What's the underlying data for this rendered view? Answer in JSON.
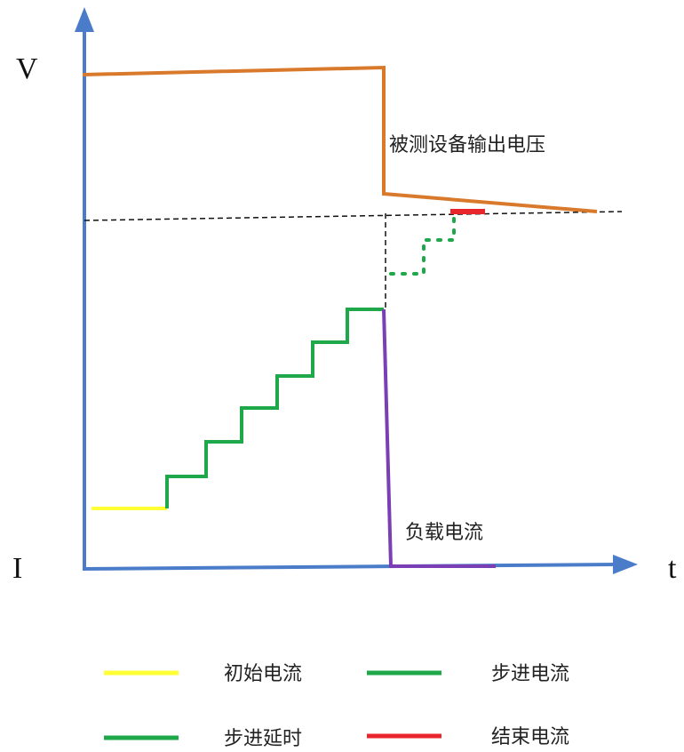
{
  "axes": {
    "y_top_label": "V",
    "y_bottom_label": "I",
    "x_label": "t"
  },
  "annotations": {
    "output_voltage": "被测设备输出电压",
    "load_current": "负载电流"
  },
  "colors": {
    "axis": "#4a7cc9",
    "voltage": "#d9792c",
    "initial_current": "#ffff33",
    "step_current": "#1fa84a",
    "step_delay": "#1fa84a",
    "end_current": "#e8252a",
    "load_current": "#7b3fb5",
    "dashed_guide": "#111111"
  },
  "legend": {
    "items": [
      {
        "label": "初始电流",
        "color": "#ffff33"
      },
      {
        "label": "步进电流",
        "color": "#1fa84a"
      },
      {
        "label": "步进延时",
        "color": "#1fa84a"
      },
      {
        "label": "结束电流",
        "color": "#e8252a"
      }
    ]
  }
}
